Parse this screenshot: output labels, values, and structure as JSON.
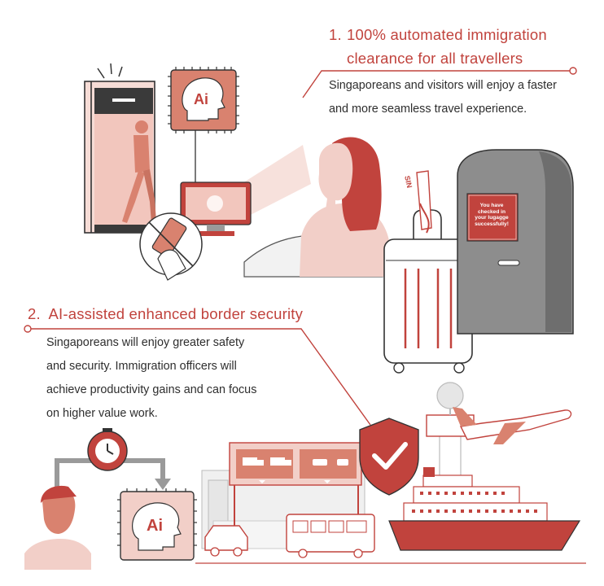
{
  "feature1": {
    "number": "1.",
    "title_line1": "100% automated immigration",
    "title_line2": "clearance for all travellers",
    "description_line1": "Singaporeans and visitors will enjoy a faster",
    "description_line2": "and more seamless travel experience."
  },
  "feature2": {
    "title": "2.  AI-assisted enhanced border security",
    "description_line1": "Singaporeans will enjoy greater safety",
    "description_line2": "and security. Immigration officers will",
    "description_line3": "achieve productivity gains and can focus",
    "description_line4": "on higher value work."
  },
  "ai_badge_label": "Ai",
  "kiosk_message": {
    "line1": "You have",
    "line2": "checked in",
    "line3": "your lugagge",
    "line4": "successfully!"
  },
  "luggage_tag_text": "SIN",
  "colors": {
    "accent_red": "#c1433d",
    "pink_light": "#f2cfc8",
    "salmon": "#d9826f",
    "gray_light": "#e6e6e6",
    "gray_mid": "#9a9a9a",
    "dark_gray": "#4a4a4a"
  },
  "icons": [
    "ai-head-icon",
    "clock-icon",
    "shield-check-icon",
    "no-phone-icon",
    "truck-icon",
    "car-icon",
    "airplane-icon",
    "ship-icon",
    "bus-icon",
    "control-tower-icon",
    "luggage-icon",
    "kiosk-icon"
  ]
}
